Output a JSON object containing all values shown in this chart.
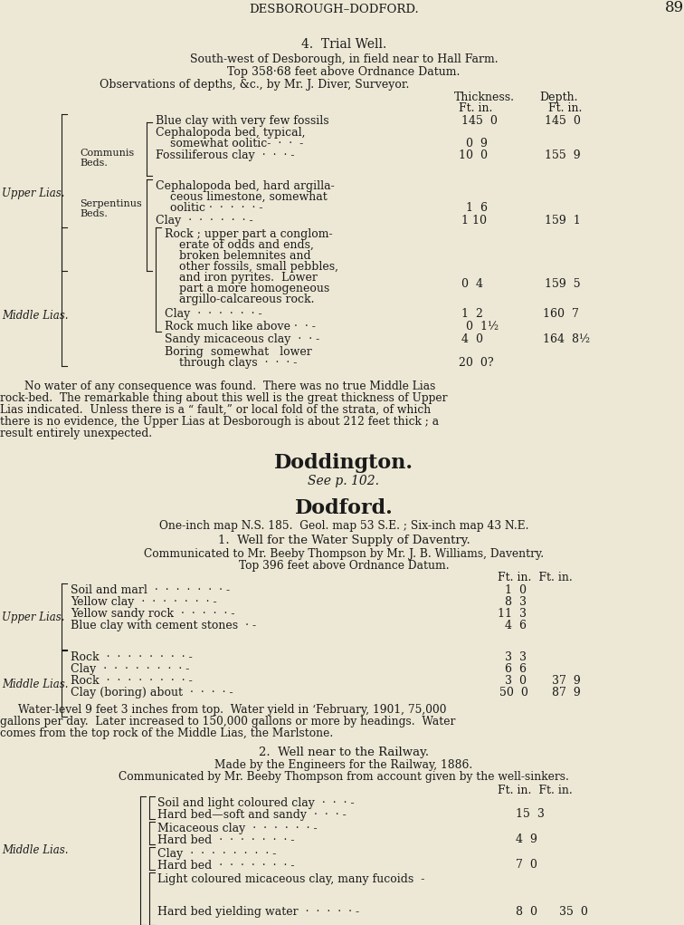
{
  "bg_color": "#ede8d5",
  "text_color": "#1a1a1a",
  "page_header": "DESBOROUGH–DODFORD.",
  "page_number": "89"
}
